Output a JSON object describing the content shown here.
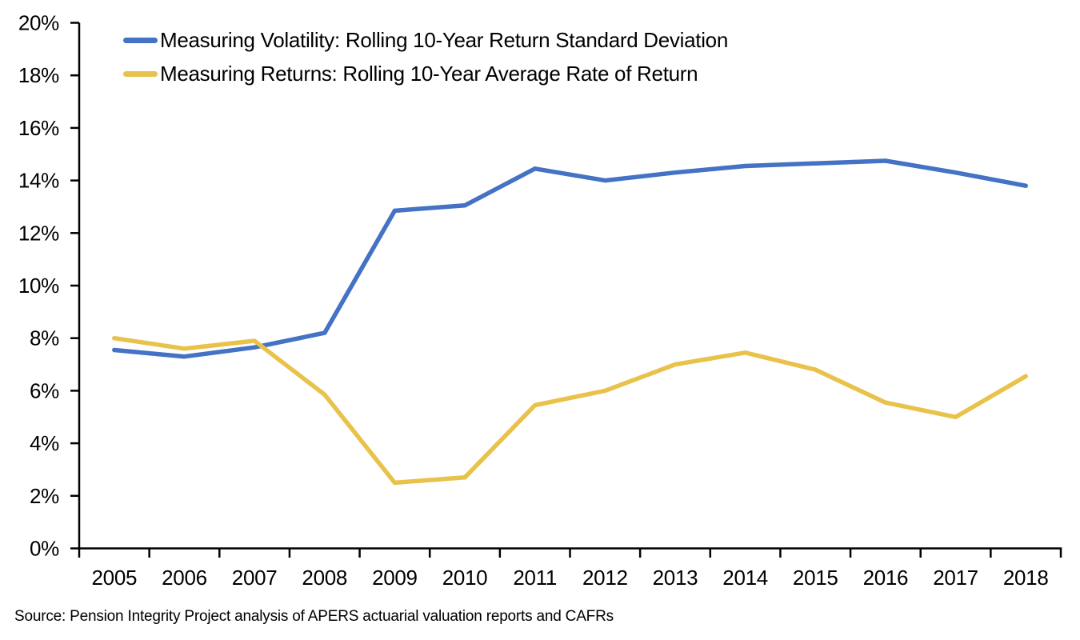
{
  "chart_data": {
    "type": "line",
    "categories": [
      "2005",
      "2006",
      "2007",
      "2008",
      "2009",
      "2010",
      "2011",
      "2012",
      "2013",
      "2014",
      "2015",
      "2016",
      "2017",
      "2018"
    ],
    "series": [
      {
        "name": "Measuring Volatility: Rolling 10-Year Return Standard Deviation",
        "color": "#4472C4",
        "values": [
          7.55,
          7.3,
          7.65,
          8.2,
          12.85,
          13.05,
          14.45,
          14.0,
          14.3,
          14.55,
          14.65,
          14.75,
          14.3,
          13.8
        ]
      },
      {
        "name": "Measuring Returns: Rolling 10-Year Average Rate of Return",
        "color": "#E8C24A",
        "values": [
          8.0,
          7.6,
          7.9,
          5.85,
          2.5,
          2.7,
          5.45,
          6.0,
          7.0,
          7.45,
          6.8,
          5.55,
          5.0,
          6.55
        ]
      }
    ],
    "title": "",
    "xlabel": "",
    "ylabel": "",
    "ylim": [
      0,
      20
    ],
    "ytick_step": 2,
    "ytick_suffix": "%",
    "grid": false,
    "legend_position": "top-left",
    "axis_color": "#000000",
    "line_width": 5.5
  },
  "source": "Source: Pension Integrity Project analysis of APERS actuarial valuation reports and CAFRs"
}
